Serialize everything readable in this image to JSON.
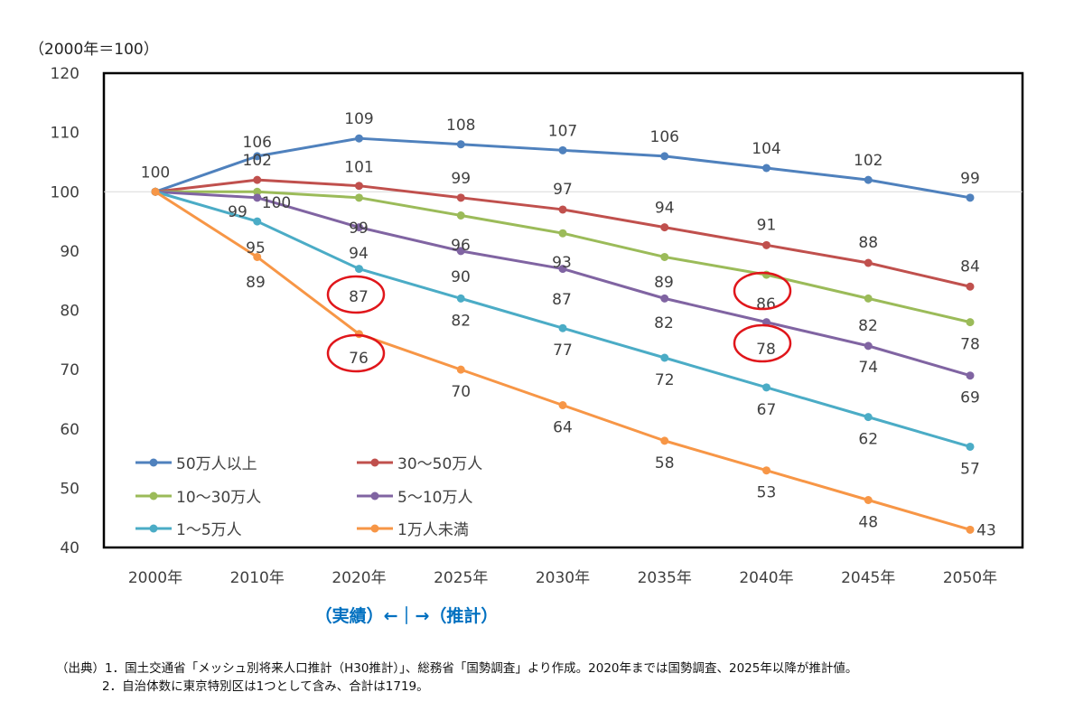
{
  "chart_data": {
    "type": "line",
    "title": "",
    "unit_label": "（2000年＝100）",
    "categories": [
      "2000年",
      "2010年",
      "2020年",
      "2025年",
      "2030年",
      "2035年",
      "2040年",
      "2045年",
      "2050年"
    ],
    "ylim": [
      40,
      120
    ],
    "yticks": [
      40,
      50,
      60,
      70,
      80,
      90,
      100,
      110,
      120
    ],
    "grid": "y=100 line only",
    "legend_position": "bottom-left (inside plot)",
    "series": [
      {
        "name": "50万人以上",
        "color": "#4F81BD",
        "values": [
          100,
          106,
          109,
          108,
          107,
          106,
          104,
          102,
          99
        ]
      },
      {
        "name": "30〜50万人",
        "color": "#C0504D",
        "values": [
          100,
          102,
          101,
          99,
          97,
          94,
          91,
          88,
          84
        ]
      },
      {
        "name": "10〜30万人",
        "color": "#9BBB59",
        "values": [
          100,
          100,
          99,
          96,
          93,
          89,
          86,
          82,
          78
        ]
      },
      {
        "name": "5〜10万人",
        "color": "#8064A2",
        "values": [
          100,
          99,
          94,
          90,
          87,
          82,
          78,
          74,
          69
        ]
      },
      {
        "name": "1〜5万人",
        "color": "#4BACC6",
        "values": [
          100,
          95,
          87,
          82,
          77,
          72,
          67,
          62,
          57
        ]
      },
      {
        "name": "1万人未満",
        "color": "#F79646",
        "values": [
          100,
          89,
          76,
          70,
          64,
          58,
          53,
          48,
          43
        ]
      }
    ],
    "annotations": {
      "period_label": "（実績）←｜→（推計）",
      "circled": [
        "87 (2020年, 1〜5万人)",
        "76 (2020年, 1万人未満)",
        "86 (2040年, 10〜30万人)",
        "78 (2040年, 5〜10万人)"
      ]
    }
  },
  "notes": [
    "（出典）1．国土交通省「メッシュ別将来人口推計（H30推計）」、総務省「国勢調査」より作成。2020年までは国勢調査、2025年以降が推計値。",
    "2．自治体数に東京特別区は1つとして含み、合計は1719。"
  ]
}
